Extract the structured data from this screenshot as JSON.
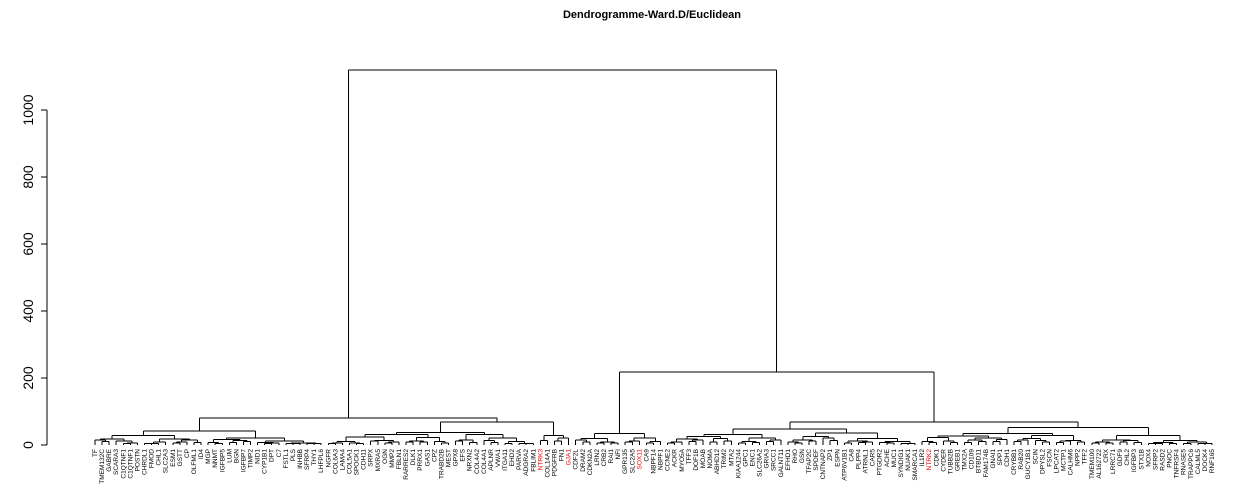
{
  "chart_data": {
    "type": "dendrogram",
    "title": "Dendrogramme-Ward.D/Euclidean",
    "xlabel": "",
    "ylabel": "",
    "ylim": [
      0,
      1100
    ],
    "yticks": [
      0,
      200,
      400,
      600,
      800,
      1000
    ],
    "colors": {
      "line": "#000000",
      "label_default": "#000000",
      "label_highlight": "#ff0000"
    },
    "merge_heights": {
      "root": 1120,
      "right_cluster": 218,
      "left_cluster": 80,
      "left_a": 47,
      "left_b": 68,
      "right_a": 34,
      "right_b": 68
    },
    "leaves": [
      {
        "label": "TF",
        "highlight": false
      },
      {
        "label": "TMEM132C",
        "highlight": false
      },
      {
        "label": "GABRE",
        "highlight": false
      },
      {
        "label": "SCARA3",
        "highlight": false
      },
      {
        "label": "C1QTNF1",
        "highlight": false
      },
      {
        "label": "C1QTNF1",
        "highlight": false
      },
      {
        "label": "POSTN",
        "highlight": false
      },
      {
        "label": "CHRDL1",
        "highlight": false
      },
      {
        "label": "FMOD",
        "highlight": false
      },
      {
        "label": "CHL1",
        "highlight": false
      },
      {
        "label": "SLC2A3",
        "highlight": false
      },
      {
        "label": "ESM1",
        "highlight": false
      },
      {
        "label": "GSTT",
        "highlight": false
      },
      {
        "label": "CP",
        "highlight": false
      },
      {
        "label": "OLFML1",
        "highlight": false
      },
      {
        "label": "ID4",
        "highlight": false
      },
      {
        "label": "MGP",
        "highlight": false
      },
      {
        "label": "NNMT",
        "highlight": false
      },
      {
        "label": "IGFBP5",
        "highlight": false
      },
      {
        "label": "LUM",
        "highlight": false
      },
      {
        "label": "BGN",
        "highlight": false
      },
      {
        "label": "IGFBP7",
        "highlight": false
      },
      {
        "label": "TIMP2",
        "highlight": false
      },
      {
        "label": "NID1",
        "highlight": false
      },
      {
        "label": "CYP1B1",
        "highlight": false
      },
      {
        "label": "DPT",
        "highlight": false
      },
      {
        "label": "C7",
        "highlight": false
      },
      {
        "label": "FSTL1",
        "highlight": false
      },
      {
        "label": "PLS",
        "highlight": false
      },
      {
        "label": "INHBB",
        "highlight": false
      },
      {
        "label": "SFRP4",
        "highlight": false
      },
      {
        "label": "THY1",
        "highlight": false
      },
      {
        "label": "LHFPL6",
        "highlight": false
      },
      {
        "label": "NGFR",
        "highlight": false
      },
      {
        "label": "COL6A3",
        "highlight": false
      },
      {
        "label": "LAMA4",
        "highlight": false
      },
      {
        "label": "COL5A1",
        "highlight": false
      },
      {
        "label": "SPOCK1",
        "highlight": false
      },
      {
        "label": "CDH11",
        "highlight": false
      },
      {
        "label": "SRPX",
        "highlight": false
      },
      {
        "label": "MXRA5",
        "highlight": false
      },
      {
        "label": "OGN",
        "highlight": false
      },
      {
        "label": "MMP2",
        "highlight": false
      },
      {
        "label": "FBLN1",
        "highlight": false
      },
      {
        "label": "RARRES2",
        "highlight": false
      },
      {
        "label": "DLK1",
        "highlight": false
      },
      {
        "label": "PRRX1",
        "highlight": false
      },
      {
        "label": "GAS1",
        "highlight": false
      },
      {
        "label": "CPZ",
        "highlight": false
      },
      {
        "label": "TRABD2B",
        "highlight": false
      },
      {
        "label": "MEST",
        "highlight": false
      },
      {
        "label": "GPX8",
        "highlight": false
      },
      {
        "label": "EFS",
        "highlight": false
      },
      {
        "label": "NRXN2",
        "highlight": false
      },
      {
        "label": "COL4A2",
        "highlight": false
      },
      {
        "label": "COL4A1",
        "highlight": false
      },
      {
        "label": "APLNR",
        "highlight": false
      },
      {
        "label": "VWA1",
        "highlight": false
      },
      {
        "label": "ITGA11",
        "highlight": false
      },
      {
        "label": "EHD2",
        "highlight": false
      },
      {
        "label": "PARVA",
        "highlight": false
      },
      {
        "label": "ADGRA2",
        "highlight": false
      },
      {
        "label": "FBLIM1",
        "highlight": false
      },
      {
        "label": "NTRK3",
        "highlight": true
      },
      {
        "label": "COL14A1",
        "highlight": false
      },
      {
        "label": "PDGFRB",
        "highlight": false
      },
      {
        "label": "FN1",
        "highlight": false
      },
      {
        "label": "GJA1",
        "highlight": true
      },
      {
        "label": "CDF2L",
        "highlight": false
      },
      {
        "label": "DRAM2",
        "highlight": false
      },
      {
        "label": "CDKN2A",
        "highlight": false
      },
      {
        "label": "LRN2",
        "highlight": false
      },
      {
        "label": "CRB2",
        "highlight": false
      },
      {
        "label": "RAI1",
        "highlight": false
      },
      {
        "label": "NFI",
        "highlight": false
      },
      {
        "label": "GPR135",
        "highlight": false
      },
      {
        "label": "SLC2A5",
        "highlight": false
      },
      {
        "label": "SOX11",
        "highlight": true
      },
      {
        "label": "CA9",
        "highlight": false
      },
      {
        "label": "NBPF14",
        "highlight": false
      },
      {
        "label": "NBPF1",
        "highlight": false
      },
      {
        "label": "CCNE2",
        "highlight": false
      },
      {
        "label": "ACKR",
        "highlight": false
      },
      {
        "label": "MYO5A",
        "highlight": false
      },
      {
        "label": "TFF3",
        "highlight": false
      },
      {
        "label": "DOF1B",
        "highlight": false
      },
      {
        "label": "MOAB",
        "highlight": false
      },
      {
        "label": "NOMA",
        "highlight": false
      },
      {
        "label": "ABHD12",
        "highlight": false
      },
      {
        "label": "TRIM2",
        "highlight": false
      },
      {
        "label": "MTA2",
        "highlight": false
      },
      {
        "label": "KIAA1244",
        "highlight": false
      },
      {
        "label": "GPC1",
        "highlight": false
      },
      {
        "label": "ENC1",
        "highlight": false
      },
      {
        "label": "SLC26A2",
        "highlight": false
      },
      {
        "label": "GRIA3",
        "highlight": false
      },
      {
        "label": "SRCC1",
        "highlight": false
      },
      {
        "label": "GALNT11",
        "highlight": false
      },
      {
        "label": "EFHD1",
        "highlight": false
      },
      {
        "label": "RHO",
        "highlight": false
      },
      {
        "label": "GSN",
        "highlight": false
      },
      {
        "label": "TFAP2C",
        "highlight": false
      },
      {
        "label": "SPDEF",
        "highlight": false
      },
      {
        "label": "CNTNAP2",
        "highlight": false
      },
      {
        "label": "ZP1",
        "highlight": false
      },
      {
        "label": "ESPN",
        "highlight": false
      },
      {
        "label": "ATP6V1B1",
        "highlight": false
      },
      {
        "label": "CA8",
        "highlight": false
      },
      {
        "label": "PLPP4",
        "highlight": false
      },
      {
        "label": "ATRNL1",
        "highlight": false
      },
      {
        "label": "CAR5",
        "highlight": false
      },
      {
        "label": "PTGDR2",
        "highlight": false
      },
      {
        "label": "ACHE",
        "highlight": false
      },
      {
        "label": "MUC1",
        "highlight": false
      },
      {
        "label": "SYNDIG1",
        "highlight": false
      },
      {
        "label": "NUAK1",
        "highlight": false
      },
      {
        "label": "SMARCA1",
        "highlight": false
      },
      {
        "label": "IL1R2",
        "highlight": false
      },
      {
        "label": "NTRK2",
        "highlight": true
      },
      {
        "label": "CDK1",
        "highlight": false
      },
      {
        "label": "CYDER",
        "highlight": false
      },
      {
        "label": "TUBB2B",
        "highlight": false
      },
      {
        "label": "GREB1",
        "highlight": false
      },
      {
        "label": "TMX2A",
        "highlight": false
      },
      {
        "label": "CD109",
        "highlight": false
      },
      {
        "label": "BTBD11",
        "highlight": false
      },
      {
        "label": "FAM174B",
        "highlight": false
      },
      {
        "label": "GNAI1",
        "highlight": false
      },
      {
        "label": "SPP1",
        "highlight": false
      },
      {
        "label": "CDH1",
        "highlight": false
      },
      {
        "label": "CRYBB1",
        "highlight": false
      },
      {
        "label": "RAB20",
        "highlight": false
      },
      {
        "label": "GUCY1B1",
        "highlight": false
      },
      {
        "label": "SCIN",
        "highlight": false
      },
      {
        "label": "DPYSL2",
        "highlight": false
      },
      {
        "label": "FSCN",
        "highlight": false
      },
      {
        "label": "LPCAT2",
        "highlight": false
      },
      {
        "label": "MCTP1",
        "highlight": false
      },
      {
        "label": "CALHM6",
        "highlight": false
      },
      {
        "label": "NPP2",
        "highlight": false
      },
      {
        "label": "TFF2",
        "highlight": false
      },
      {
        "label": "TMEM100",
        "highlight": false
      },
      {
        "label": "AL162722",
        "highlight": false
      },
      {
        "label": "CRX",
        "highlight": false
      },
      {
        "label": "LRRC71",
        "highlight": false
      },
      {
        "label": "GDF9",
        "highlight": false
      },
      {
        "label": "CHL2",
        "highlight": false
      },
      {
        "label": "IGFBP3",
        "highlight": false
      },
      {
        "label": "STX1B",
        "highlight": false
      },
      {
        "label": "NOX4",
        "highlight": false
      },
      {
        "label": "SFRP2",
        "highlight": false
      },
      {
        "label": "RASD2",
        "highlight": false
      },
      {
        "label": "PNOC",
        "highlight": false
      },
      {
        "label": "TNFRSF4",
        "highlight": false
      },
      {
        "label": "RNASE5",
        "highlight": false
      },
      {
        "label": "TRAPPC6",
        "highlight": false
      },
      {
        "label": "CALML5",
        "highlight": false
      },
      {
        "label": "DOCK4",
        "highlight": false
      },
      {
        "label": "RNF165",
        "highlight": false
      }
    ]
  }
}
